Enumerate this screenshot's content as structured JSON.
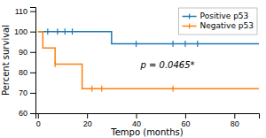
{
  "chart_data": {
    "type": "step",
    "xlabel": "Tempo (months)",
    "ylabel": "Percent survival",
    "annotation": "p = 0.0465*",
    "xlim": [
      -1,
      90
    ],
    "ylim": [
      60,
      112
    ],
    "xticks": [
      0,
      20,
      40,
      60,
      80
    ],
    "yticks": [
      60,
      70,
      80,
      90,
      100,
      110
    ],
    "legend": "upper right",
    "series": [
      {
        "name": "Positive p53",
        "x": [
          0,
          4,
          8,
          11,
          14,
          30,
          35,
          40,
          55,
          60,
          65,
          90
        ],
        "values": [
          100,
          100,
          100,
          100,
          100,
          94,
          94,
          94,
          94,
          94,
          94,
          94
        ],
        "censor_x": [
          4,
          8,
          11,
          14,
          40,
          55,
          60,
          65
        ],
        "censor_values": [
          100,
          100,
          100,
          100,
          94,
          94,
          94,
          94
        ]
      },
      {
        "name": "Negative p53",
        "x": [
          0,
          2,
          7,
          10,
          18,
          20,
          22,
          26,
          55,
          90
        ],
        "values": [
          100,
          92,
          84,
          84,
          72,
          72,
          72,
          72,
          72,
          72
        ],
        "censor_x": [
          7,
          22,
          26,
          55
        ],
        "censor_values": [
          84,
          72,
          72,
          72
        ]
      }
    ]
  }
}
